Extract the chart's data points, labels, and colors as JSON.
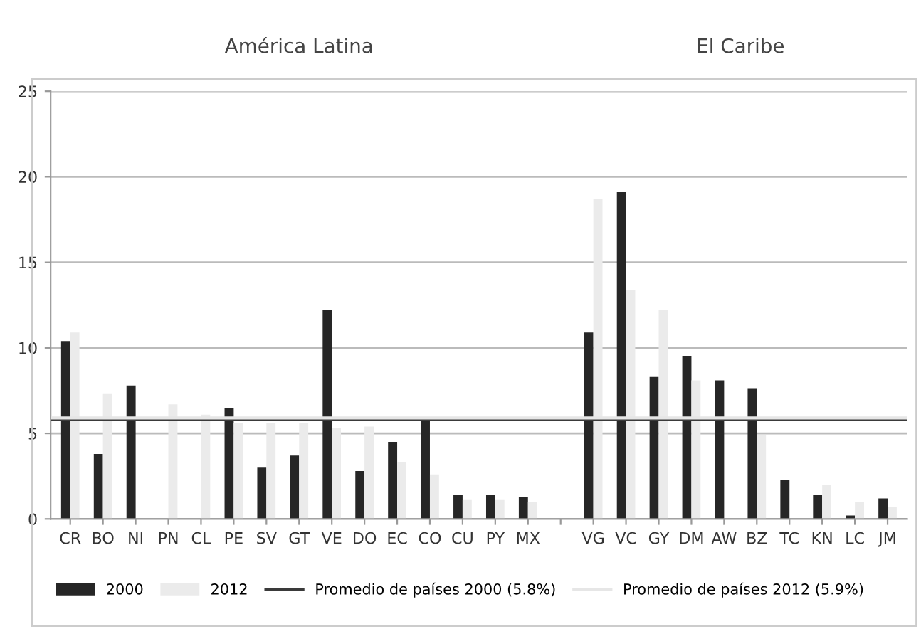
{
  "chart_data": {
    "type": "bar",
    "categories": [
      "CR",
      "BO",
      "NI",
      "PN",
      "CL",
      "PE",
      "SV",
      "GT",
      "VE",
      "DO",
      "EC",
      "CO",
      "CU",
      "PY",
      "MX",
      null,
      "VG",
      "VC",
      "GY",
      "DM",
      "AW",
      "BZ",
      "TC",
      "KN",
      "LC",
      "JM"
    ],
    "series": [
      {
        "name": "2000",
        "color": "#262626",
        "values": [
          10.4,
          3.8,
          7.8,
          null,
          null,
          6.5,
          3.0,
          3.7,
          12.2,
          2.8,
          4.5,
          5.8,
          1.4,
          1.4,
          1.3,
          null,
          10.9,
          19.1,
          8.3,
          9.5,
          8.1,
          7.6,
          2.3,
          1.4,
          0.2,
          1.2
        ]
      },
      {
        "name": "2012",
        "color": "#ebebeb",
        "values": [
          10.9,
          7.3,
          null,
          6.7,
          6.1,
          5.6,
          5.6,
          5.6,
          5.3,
          5.4,
          3.3,
          2.6,
          1.1,
          1.1,
          1.0,
          null,
          18.7,
          13.4,
          12.2,
          8.1,
          null,
          4.9,
          null,
          2.0,
          1.0,
          0.7
        ]
      }
    ],
    "ref_lines": [
      {
        "axis": "y",
        "value": 5.8,
        "label": "Promedio de países 2000 (5.8%)",
        "color": "#3a3a3a"
      },
      {
        "axis": "y",
        "value": 5.9,
        "label": "Promedio de países 2012 (5.9%)",
        "color": "#e6e6e6"
      }
    ],
    "annotations": [
      "América Latina",
      "El Caribe"
    ],
    "ylim": [
      0,
      25
    ],
    "yticks": [
      0,
      5,
      10,
      15,
      20,
      25
    ],
    "grid": "y",
    "legend": "bottom"
  }
}
